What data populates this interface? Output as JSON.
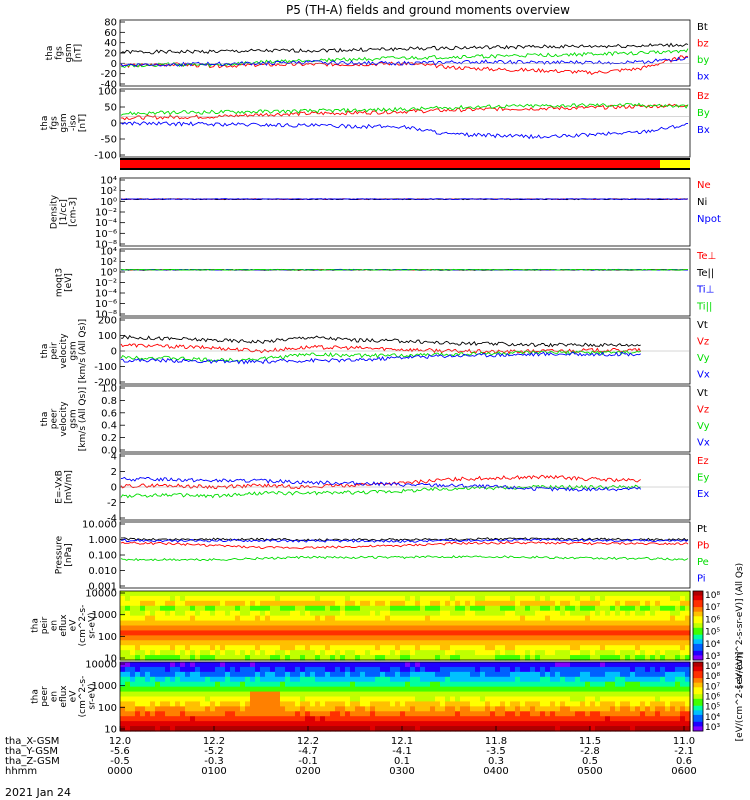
{
  "title": "P5 (TH-A) fields and ground moments overview",
  "date_label": "2021 Jan 24",
  "colors": {
    "black": "#000000",
    "red": "#ff0000",
    "green": "#00dd00",
    "blue": "#0000ff",
    "yellowbar": "#ffff00"
  },
  "chart_data": [
    {
      "type": "line",
      "id": "fgs_gsm",
      "ylabel": [
        "tha",
        "fgs",
        "gsm",
        "[nT]"
      ],
      "ylim": [
        -40,
        80
      ],
      "yticks": [
        "80",
        "60",
        "40",
        "20",
        "0",
        "-20",
        "-40"
      ],
      "series": [
        {
          "name": "Bt",
          "color": "#000000",
          "values": [
            22,
            22,
            23,
            24,
            25,
            26,
            28,
            30,
            31,
            32,
            33,
            34,
            36
          ]
        },
        {
          "name": "bz",
          "color": "#ff0000",
          "values": [
            -5,
            -2,
            -5,
            -3,
            -2,
            -2,
            0,
            -8,
            -12,
            -14,
            -18,
            -10,
            15
          ]
        },
        {
          "name": "by",
          "color": "#00dd00",
          "values": [
            -5,
            -2,
            -4,
            2,
            6,
            8,
            10,
            12,
            14,
            16,
            18,
            20,
            25
          ]
        },
        {
          "name": "bx",
          "color": "#0000ff",
          "values": [
            -3,
            -2,
            -1,
            0,
            2,
            1,
            0,
            2,
            3,
            1,
            2,
            2,
            10
          ]
        }
      ]
    },
    {
      "type": "line",
      "id": "fgs_gsm_iso",
      "ylabel": [
        "tha",
        "fgs",
        "gsm",
        "-iso",
        "[nT]"
      ],
      "ylim": [
        -150,
        100
      ],
      "yticks": [
        "100",
        "50",
        "0",
        "-50",
        "-100"
      ],
      "series": [
        {
          "name": "Bz",
          "color": "#ff0000",
          "values": [
            -5,
            -2,
            0,
            8,
            12,
            15,
            20,
            25,
            30,
            32,
            35,
            40,
            45
          ]
        },
        {
          "name": "By",
          "color": "#00dd00",
          "values": [
            12,
            15,
            18,
            20,
            22,
            25,
            28,
            35,
            40,
            42,
            45,
            45,
            40
          ]
        },
        {
          "name": "Bx",
          "color": "#0000ff",
          "values": [
            -25,
            -28,
            -30,
            -32,
            -35,
            -38,
            -40,
            -70,
            -75,
            -80,
            -70,
            -60,
            -30
          ]
        }
      ]
    },
    {
      "type": "line",
      "id": "density",
      "ylabel": [
        "Density",
        "[1/cc]",
        "[cm-3]"
      ],
      "ylim": [
        -8,
        4
      ],
      "log": true,
      "yticks": [
        "10⁴",
        "10²",
        "10⁰",
        "10⁻²",
        "10⁻⁴",
        "10⁻⁶",
        "10⁻⁸"
      ],
      "series": [
        {
          "name": "Ne",
          "color": "#ff0000",
          "values": [
            2.6,
            2.6,
            2.6,
            2.6,
            2.6,
            2.6,
            2.6,
            2.6,
            2.6,
            2.6,
            2.6,
            2.6,
            2.6
          ]
        },
        {
          "name": "Ni",
          "color": "#000000",
          "values": [
            2.5,
            2.5,
            2.5,
            2.5,
            2.5,
            2.5,
            2.5,
            2.5,
            2.5,
            2.5,
            2.5,
            2.5,
            2.5
          ]
        },
        {
          "name": "Npot",
          "color": "#0000ff",
          "values": [
            2.7,
            2.7,
            2.7,
            2.7,
            2.7,
            2.7,
            2.7,
            2.7,
            2.7,
            2.7,
            2.7,
            2.7,
            2.7
          ]
        }
      ]
    },
    {
      "type": "line",
      "id": "temperature",
      "ylabel": [
        "moqt3",
        "[eV]"
      ],
      "ylim": [
        -8,
        4
      ],
      "log": true,
      "yticks": [
        "10⁴",
        "10²",
        "10⁰",
        "10⁻²",
        "10⁻⁴",
        "10⁻⁶",
        "10⁻⁸"
      ],
      "series": [
        {
          "name": "Te⊥",
          "color": "#ff0000",
          "values": [
            2.6,
            2.6,
            2.6,
            2.6,
            2.6,
            2.6,
            2.6,
            2.6,
            2.6,
            2.6,
            2.6,
            2.6,
            2.6
          ]
        },
        {
          "name": "Te||",
          "color": "#000000",
          "values": [
            2.5,
            2.5,
            2.5,
            2.5,
            2.5,
            2.5,
            2.5,
            2.5,
            2.5,
            2.5,
            2.5,
            2.5,
            2.5
          ]
        },
        {
          "name": "Ti⊥",
          "color": "#0000ff",
          "values": [
            2.7,
            2.7,
            2.7,
            2.7,
            2.7,
            2.7,
            2.7,
            2.7,
            2.7,
            2.7,
            2.7,
            2.7,
            2.7
          ]
        },
        {
          "name": "Ti||",
          "color": "#00dd00",
          "values": [
            2.65,
            2.65,
            2.65,
            2.65,
            2.65,
            2.65,
            2.65,
            2.65,
            2.65,
            2.65,
            2.65,
            2.65,
            2.65
          ]
        }
      ]
    },
    {
      "type": "line",
      "id": "peir_velocity",
      "ylabel": [
        "tha",
        "peir",
        "velocity",
        "gsm",
        "[km/s (All Qs)]"
      ],
      "ylim": [
        -200,
        200
      ],
      "yticks": [
        "200",
        "100",
        "0",
        "-100",
        "-200"
      ],
      "series": [
        {
          "name": "Vt",
          "color": "#000000",
          "values": [
            90,
            80,
            70,
            60,
            90,
            70,
            65,
            50,
            45,
            40,
            40,
            40,
            null
          ]
        },
        {
          "name": "Vz",
          "color": "#ff0000",
          "values": [
            40,
            30,
            20,
            0,
            25,
            20,
            10,
            0,
            -5,
            0,
            5,
            5,
            null
          ]
        },
        {
          "name": "Vy",
          "color": "#00dd00",
          "values": [
            -40,
            -45,
            -60,
            -50,
            -20,
            -30,
            -30,
            -20,
            -15,
            -10,
            -10,
            -10,
            null
          ]
        },
        {
          "name": "Vx",
          "color": "#0000ff",
          "values": [
            -60,
            -60,
            -70,
            -70,
            -60,
            -60,
            -40,
            -30,
            -25,
            -20,
            -20,
            -20,
            null
          ]
        }
      ]
    },
    {
      "type": "line",
      "id": "peer_velocity",
      "ylabel": [
        "tha",
        "peer",
        "velocity",
        "gsm",
        "[km/s (All Qs)]"
      ],
      "ylim": [
        0,
        1
      ],
      "yticks": [
        "1.0",
        "0.8",
        "0.6",
        "0.4",
        "0.2",
        "0.0"
      ],
      "series": [
        {
          "name": "Vt",
          "color": "#000000",
          "values": []
        },
        {
          "name": "Vz",
          "color": "#ff0000",
          "values": []
        },
        {
          "name": "Vy",
          "color": "#00dd00",
          "values": []
        },
        {
          "name": "Vx",
          "color": "#0000ff",
          "values": []
        }
      ]
    },
    {
      "type": "line",
      "id": "efield",
      "ylabel": [
        "E=-VxB",
        "[mV/m]"
      ],
      "ylim": [
        -4,
        4
      ],
      "yticks": [
        "4",
        "2",
        "0",
        "-2",
        "-4"
      ],
      "series": [
        {
          "name": "Ez",
          "color": "#ff0000",
          "values": [
            0.1,
            0.2,
            0.0,
            0.2,
            0.0,
            0.3,
            0.5,
            1.0,
            1.2,
            1.3,
            1.0,
            0.8,
            null
          ]
        },
        {
          "name": "Ey",
          "color": "#00dd00",
          "values": [
            -1.2,
            -1.0,
            -1.2,
            -0.8,
            -0.8,
            -0.7,
            -0.5,
            -0.2,
            -0.1,
            0.0,
            0.0,
            0.0,
            null
          ]
        },
        {
          "name": "Ex",
          "color": "#0000ff",
          "values": [
            1.0,
            1.0,
            0.8,
            0.8,
            0.6,
            0.5,
            0.3,
            0.2,
            0.0,
            -0.3,
            -0.3,
            -0.2,
            null
          ]
        }
      ]
    },
    {
      "type": "line",
      "id": "pressure",
      "log": true,
      "ylabel": [
        "Pressure",
        "[nPa]"
      ],
      "ylim": [
        -3,
        1
      ],
      "yticks": [
        "10.000",
        "1.000",
        "0.100",
        "0.010",
        "0.001"
      ],
      "series": [
        {
          "name": "Pt",
          "color": "#000000",
          "values": [
            1.1,
            1.0,
            1.05,
            1.0,
            0.95,
            1.0,
            1.0,
            1.05,
            1.1,
            1.1,
            1.05,
            1.0,
            1.0
          ]
        },
        {
          "name": "Pb",
          "color": "#ff0000",
          "values": [
            0.6,
            0.55,
            0.4,
            0.3,
            0.3,
            0.35,
            0.4,
            0.55,
            0.6,
            0.6,
            0.55,
            0.55,
            0.55
          ]
        },
        {
          "name": "Pe",
          "color": "#00dd00",
          "values": [
            0.05,
            0.05,
            0.05,
            0.06,
            0.07,
            0.07,
            0.07,
            0.08,
            0.08,
            0.07,
            0.06,
            0.06,
            0.05
          ]
        },
        {
          "name": "Pi",
          "color": "#0000ff",
          "values": [
            0.9,
            0.8,
            0.85,
            0.85,
            0.8,
            0.8,
            0.75,
            0.85,
            0.9,
            0.95,
            0.85,
            0.85,
            0.85
          ]
        }
      ]
    },
    {
      "type": "heatmap",
      "id": "peir_spec",
      "ylabel": [
        "tha",
        "peir",
        "en",
        "eflux",
        "eV",
        "(cm^2-s-",
        "sr-eV)"
      ],
      "yticks": [
        "10000",
        "1000",
        "100",
        "10"
      ],
      "colorbar_label": "[eV/(cm^2-s-sr-eV)] (All Qs)",
      "colorbar_ticks": [
        "10⁸",
        "10⁷",
        "10⁶",
        "10⁵",
        "10⁴",
        "10³"
      ]
    },
    {
      "type": "heatmap",
      "id": "peer_spec",
      "ylabel": [
        "tha",
        "peer",
        "en",
        "eflux",
        "eV",
        "(cm^2-s-",
        "sr-eV)"
      ],
      "yticks": [
        "10000",
        "1000",
        "100",
        "10"
      ],
      "colorbar_label": "[eV/(cm^2-s-sr-eV)]",
      "colorbar_ticks": [
        "10⁹",
        "10⁸",
        "10⁷",
        "10⁶",
        "10⁵",
        "10⁴",
        "10³"
      ]
    }
  ],
  "xaxis": {
    "rows": [
      {
        "label": "tha_X-GSM",
        "values": [
          "12.0",
          "12.2",
          "12.2",
          "12.1",
          "11.8",
          "11.5",
          "11.0"
        ]
      },
      {
        "label": "tha_Y-GSM",
        "values": [
          "-5.6",
          "-5.2",
          "-4.7",
          "-4.1",
          "-3.5",
          "-2.8",
          "-2.1"
        ]
      },
      {
        "label": "tha_Z-GSM",
        "values": [
          "-0.5",
          "-0.3",
          "-0.1",
          "0.1",
          "0.3",
          "0.5",
          "0.6"
        ]
      },
      {
        "label": "hhmm",
        "values": [
          "0000",
          "0100",
          "0200",
          "0300",
          "0400",
          "0500",
          "0600"
        ]
      }
    ]
  }
}
